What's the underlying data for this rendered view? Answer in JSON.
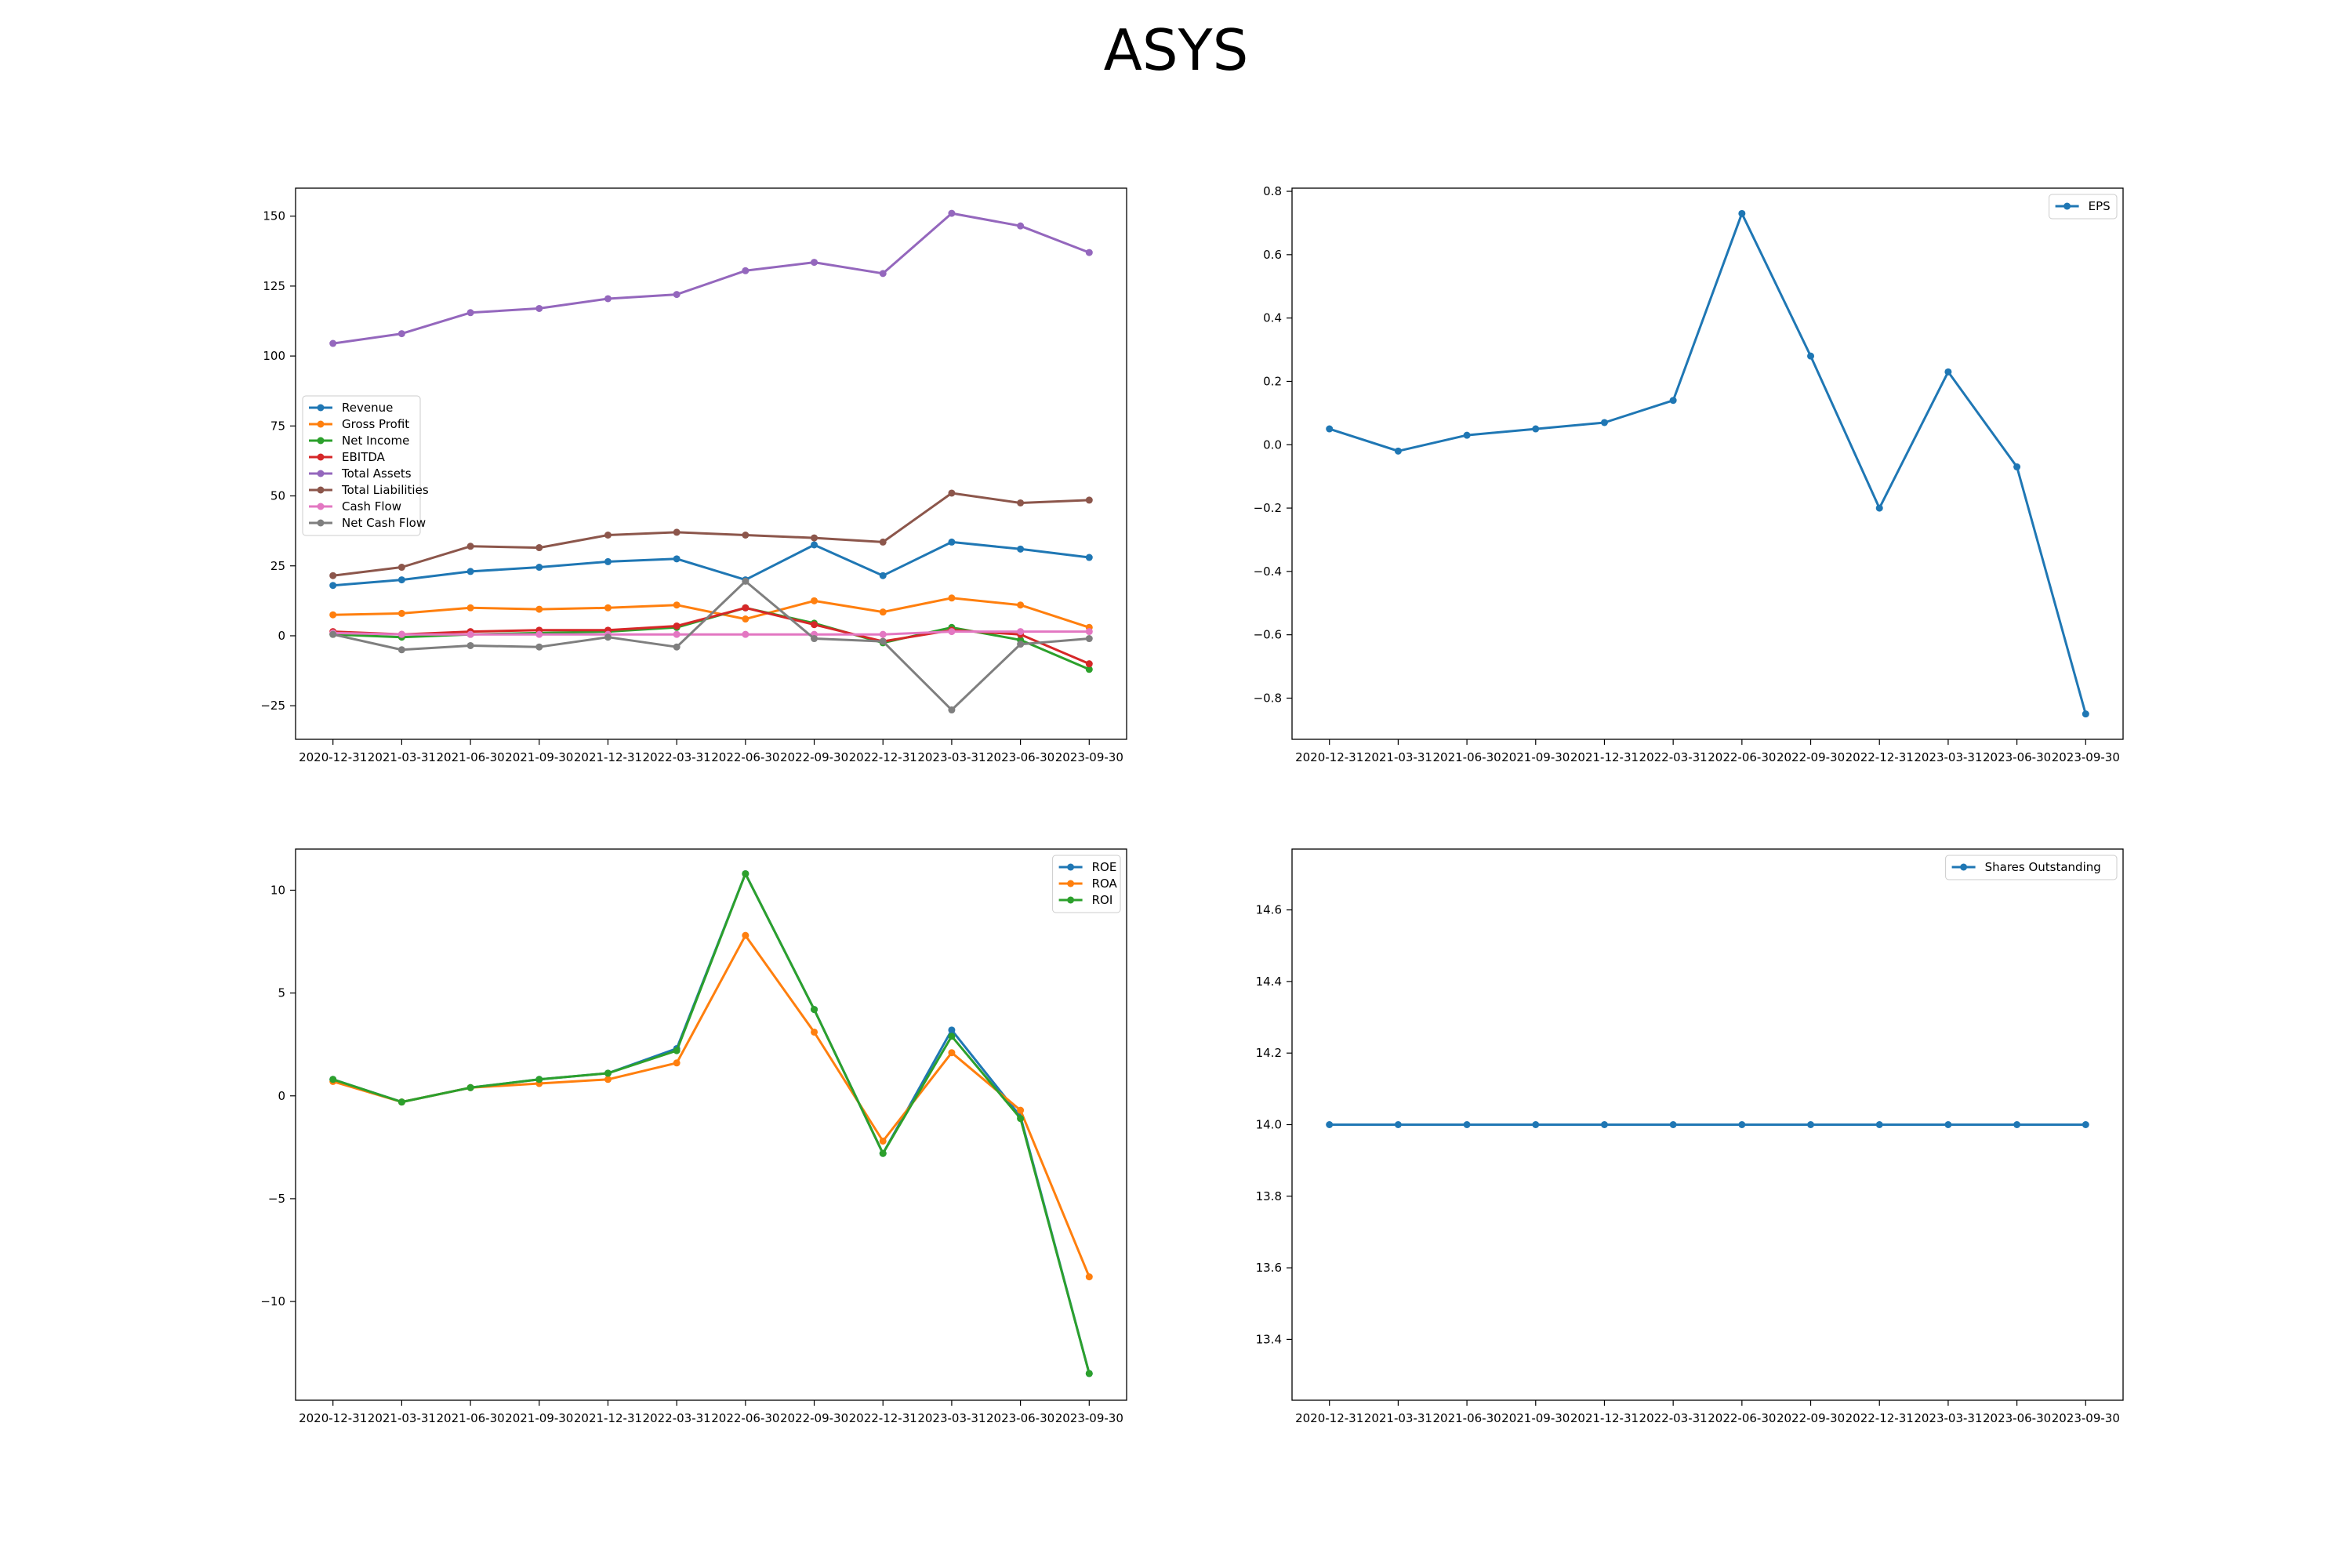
{
  "title": "ASYS",
  "chart_data": [
    {
      "type": "line",
      "categories": [
        "2020-12-31",
        "2021-03-31",
        "2021-06-30",
        "2021-09-30",
        "2021-12-31",
        "2022-03-31",
        "2022-06-30",
        "2022-09-30",
        "2022-12-31",
        "2023-03-31",
        "2023-06-30",
        "2023-09-30"
      ],
      "ylim": [
        -37,
        160
      ],
      "yticks": [
        -25,
        0,
        25,
        50,
        75,
        100,
        125,
        150
      ],
      "ytick_labels": [
        "−25",
        "0",
        "25",
        "50",
        "75",
        "100",
        "125",
        "150"
      ],
      "legend_position": "center-left",
      "grid": false,
      "series": [
        {
          "name": "Revenue",
          "color": "#1f77b4",
          "values": [
            18,
            20,
            23,
            24.5,
            26.5,
            27.5,
            20,
            32.5,
            21.5,
            33.5,
            31,
            28
          ]
        },
        {
          "name": "Gross Profit",
          "color": "#ff7f0e",
          "values": [
            7.5,
            8,
            10,
            9.5,
            10,
            11,
            6,
            12.5,
            8.5,
            13.5,
            11,
            3
          ]
        },
        {
          "name": "Net Income",
          "color": "#2ca02c",
          "values": [
            0.5,
            -0.5,
            0.5,
            1,
            1.5,
            3,
            10,
            4.5,
            -2.5,
            3,
            -1.5,
            -12
          ]
        },
        {
          "name": "EBITDA",
          "color": "#d62728",
          "values": [
            1.5,
            0.5,
            1.5,
            2,
            2,
            3.5,
            10,
            4,
            -2,
            2,
            0.5,
            -10
          ]
        },
        {
          "name": "Total Assets",
          "color": "#9467bd",
          "values": [
            104.5,
            108,
            115.5,
            117,
            120.5,
            122,
            130.5,
            133.5,
            129.5,
            151,
            146.5,
            137
          ]
        },
        {
          "name": "Total Liabilities",
          "color": "#8c564b",
          "values": [
            21.5,
            24.5,
            32,
            31.5,
            36,
            37,
            36,
            35,
            33.5,
            51,
            47.5,
            48.5
          ]
        },
        {
          "name": "Cash Flow",
          "color": "#e377c2",
          "values": [
            1,
            0.5,
            0.5,
            0.5,
            0.5,
            0.5,
            0.5,
            0.5,
            0.5,
            1.5,
            1.5,
            1.5
          ]
        },
        {
          "name": "Net Cash Flow",
          "color": "#7f7f7f",
          "values": [
            0.5,
            -5,
            -3.5,
            -4,
            -0.5,
            -4,
            19.5,
            -1,
            -2,
            -26.5,
            -3,
            -1
          ]
        }
      ]
    },
    {
      "type": "line",
      "categories": [
        "2020-12-31",
        "2021-03-31",
        "2021-06-30",
        "2021-09-30",
        "2021-12-31",
        "2022-03-31",
        "2022-06-30",
        "2022-09-30",
        "2022-12-31",
        "2023-03-31",
        "2023-06-30",
        "2023-09-30"
      ],
      "ylim": [
        -0.93,
        0.81
      ],
      "yticks": [
        -0.8,
        -0.6,
        -0.4,
        -0.2,
        0,
        0.2,
        0.4,
        0.6,
        0.8
      ],
      "ytick_labels": [
        "−0.8",
        "−0.6",
        "−0.4",
        "−0.2",
        "0.0",
        "0.2",
        "0.4",
        "0.6",
        "0.8"
      ],
      "legend_position": "top-right",
      "grid": false,
      "series": [
        {
          "name": "EPS",
          "color": "#1f77b4",
          "values": [
            0.05,
            -0.02,
            0.03,
            0.05,
            0.07,
            0.14,
            0.73,
            0.28,
            -0.2,
            0.23,
            -0.07,
            -0.85
          ]
        }
      ]
    },
    {
      "type": "line",
      "categories": [
        "2020-12-31",
        "2021-03-31",
        "2021-06-30",
        "2021-09-30",
        "2021-12-31",
        "2022-03-31",
        "2022-06-30",
        "2022-09-30",
        "2022-12-31",
        "2023-03-31",
        "2023-06-30",
        "2023-09-30"
      ],
      "ylim": [
        -14.8,
        12
      ],
      "yticks": [
        -10,
        -5,
        0,
        5,
        10
      ],
      "ytick_labels": [
        "−10",
        "−5",
        "0",
        "5",
        "10"
      ],
      "legend_position": "top-right",
      "grid": false,
      "series": [
        {
          "name": "ROE",
          "color": "#1f77b4",
          "values": [
            0.8,
            -0.3,
            0.4,
            0.8,
            1.1,
            2.3,
            10.8,
            4.2,
            -2.8,
            3.2,
            -1,
            -13.5
          ]
        },
        {
          "name": "ROA",
          "color": "#ff7f0e",
          "values": [
            0.7,
            -0.3,
            0.4,
            0.6,
            0.8,
            1.6,
            7.8,
            3.1,
            -2.2,
            2.1,
            -0.7,
            -8.8
          ]
        },
        {
          "name": "ROI",
          "color": "#2ca02c",
          "values": [
            0.8,
            -0.3,
            0.4,
            0.8,
            1.1,
            2.2,
            10.8,
            4.2,
            -2.8,
            2.9,
            -1.1,
            -13.5
          ]
        }
      ]
    },
    {
      "type": "line",
      "categories": [
        "2020-12-31",
        "2021-03-31",
        "2021-06-30",
        "2021-09-30",
        "2021-12-31",
        "2022-03-31",
        "2022-06-30",
        "2022-09-30",
        "2022-12-31",
        "2023-03-31",
        "2023-06-30",
        "2023-09-30"
      ],
      "ylim": [
        13.23,
        14.77
      ],
      "yticks": [
        13.4,
        13.6,
        13.8,
        14.0,
        14.2,
        14.4,
        14.6
      ],
      "ytick_labels": [
        "13.4",
        "13.6",
        "13.8",
        "14.0",
        "14.2",
        "14.4",
        "14.6"
      ],
      "legend_position": "top-right",
      "grid": false,
      "series": [
        {
          "name": "Shares Outstanding",
          "color": "#1f77b4",
          "values": [
            14,
            14,
            14,
            14,
            14,
            14,
            14,
            14,
            14,
            14,
            14,
            14
          ]
        }
      ]
    }
  ]
}
